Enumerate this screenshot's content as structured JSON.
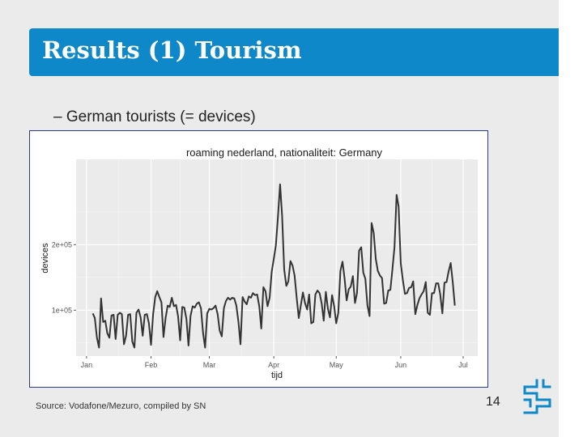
{
  "slide": {
    "title": "Results (1) Tourism",
    "bullet_dash": "–",
    "bullet_text": "German tourists (= devices)",
    "source": "Source: Vodafone/Mezuro, compiled by SN",
    "page_number": "14",
    "accent_color": "#0e88c9",
    "logo_icon": "cbs-logo-icon"
  },
  "chart_data": {
    "type": "line",
    "title": "roaming nederland, nationaliteit: Germany",
    "xlabel": "tijd",
    "ylabel": "devices",
    "ytick_values": [
      100000,
      200000
    ],
    "ytick_labels": [
      "1e+05",
      "2e+05"
    ],
    "ylim": [
      30000,
      330000
    ],
    "xlim_days": [
      -5,
      188
    ],
    "xtick_days": [
      0,
      31,
      59,
      90,
      120,
      151,
      181
    ],
    "xtick_labels": [
      "Jan",
      "Feb",
      "Mar",
      "Apr",
      "May",
      "Jun",
      "Jul"
    ],
    "series": [
      {
        "name": "Germany",
        "color": "#333333",
        "x_start_day": 3,
        "values": [
          95000,
          88000,
          58000,
          43000,
          118000,
          82000,
          84000,
          65000,
          58000,
          92000,
          93000,
          56000,
          93000,
          96000,
          94000,
          48000,
          61000,
          93000,
          94000,
          52000,
          43000,
          96000,
          101000,
          89000,
          61000,
          93000,
          94000,
          80000,
          47000,
          94000,
          120000,
          129000,
          120000,
          112000,
          59000,
          88000,
          107000,
          105000,
          119000,
          106000,
          108000,
          91000,
          54000,
          105000,
          104000,
          87000,
          46000,
          91000,
          106000,
          104000,
          110000,
          112000,
          103000,
          65000,
          43000,
          95000,
          102000,
          101000,
          103000,
          107000,
          94000,
          69000,
          60000,
          103000,
          114000,
          119000,
          116000,
          119000,
          118000,
          107000,
          82000,
          48000,
          120000,
          113000,
          109000,
          121000,
          119000,
          126000,
          123000,
          124000,
          106000,
          72000,
          135000,
          129000,
          106000,
          119000,
          159000,
          178000,
          199000,
          243000,
          292000,
          244000,
          162000,
          137000,
          144000,
          175000,
          168000,
          153000,
          119000,
          88000,
          108000,
          127000,
          111000,
          101000,
          124000,
          80000,
          82000,
          124000,
          130000,
          126000,
          110000,
          84000,
          128000,
          102000,
          89000,
          123000,
          106000,
          80000,
          96000,
          160000,
          174000,
          149000,
          115000,
          132000,
          136000,
          152000,
          111000,
          126000,
          191000,
          196000,
          157000,
          148000,
          107000,
          91000,
          233000,
          218000,
          178000,
          160000,
          153000,
          149000,
          110000,
          111000,
          130000,
          131000,
          162000,
          196000,
          276000,
          258000,
          172000,
          146000,
          125000,
          126000,
          134000,
          135000,
          144000,
          94000,
          108000,
          118000,
          124000,
          129000,
          143000,
          96000,
          93000,
          126000,
          126000,
          141000,
          141000,
          124000,
          95000,
          142000,
          143000,
          159000,
          172000,
          142000,
          107000
        ]
      }
    ]
  }
}
